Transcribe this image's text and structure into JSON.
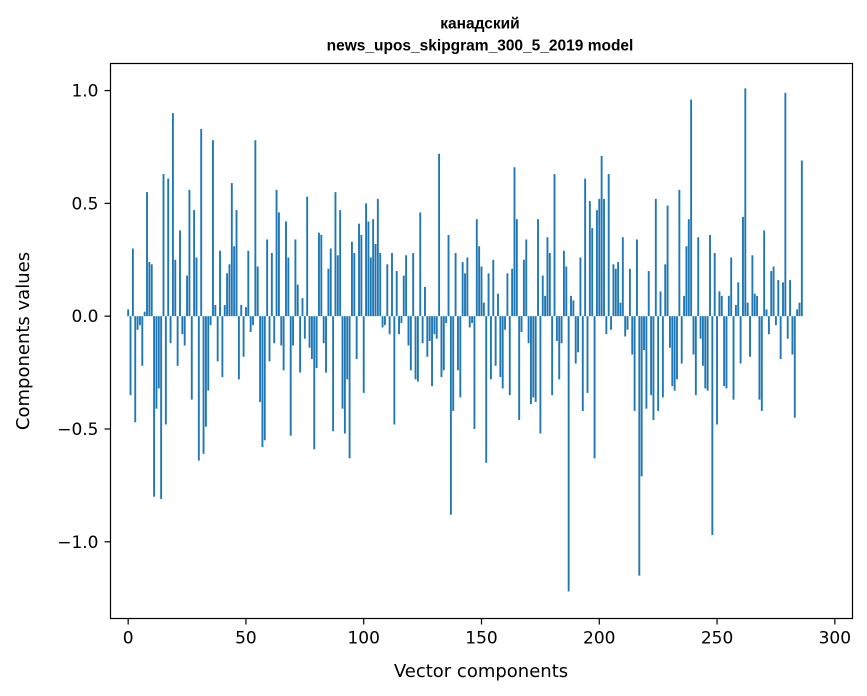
{
  "chart_data": {
    "type": "bar",
    "title_line1": "канадский",
    "title_line2": "news_upos_skipgram_300_5_2019 model",
    "xlabel": "Vector components",
    "ylabel": "Components values",
    "xlim": [
      -7.5,
      307.5
    ],
    "ylim": [
      -1.34,
      1.12
    ],
    "xticks": [
      0,
      50,
      100,
      150,
      200,
      250,
      300
    ],
    "xtick_labels": [
      "0",
      "50",
      "100",
      "150",
      "200",
      "250",
      "300"
    ],
    "yticks": [
      -1.0,
      -0.5,
      0.0,
      0.5,
      1.0
    ],
    "ytick_labels": [
      "−1.0",
      "−0.5",
      "0.0",
      "0.5",
      "1.0"
    ],
    "bar_color": "#1f77b4",
    "values": [
      0.03,
      -0.35,
      0.3,
      -0.47,
      -0.06,
      -0.04,
      -0.22,
      0.02,
      0.55,
      0.24,
      0.23,
      -0.8,
      -0.41,
      -0.32,
      -0.81,
      0.63,
      -0.48,
      0.61,
      -0.12,
      0.9,
      0.25,
      -0.22,
      0.38,
      -0.08,
      -0.13,
      0.18,
      0.56,
      -0.37,
      0.47,
      0.26,
      -0.64,
      0.83,
      -0.61,
      -0.49,
      -0.33,
      -0.04,
      0.78,
      0.05,
      -0.2,
      0.29,
      -0.27,
      0.05,
      0.19,
      0.23,
      0.59,
      0.31,
      0.47,
      -0.28,
      0.05,
      -0.18,
      0.04,
      0.29,
      -0.07,
      -0.04,
      0.78,
      0.22,
      -0.38,
      -0.58,
      -0.55,
      0.34,
      -0.2,
      0.28,
      -0.12,
      0.56,
      0.46,
      -0.13,
      -0.24,
      0.42,
      0.26,
      -0.53,
      -0.13,
      0.34,
      0.14,
      -0.25,
      0.08,
      -0.1,
      0.53,
      -0.14,
      -0.19,
      -0.59,
      -0.23,
      0.37,
      0.36,
      -0.12,
      -0.25,
      0.21,
      0.3,
      -0.51,
      0.55,
      0.27,
      0.47,
      -0.41,
      -0.52,
      -0.28,
      -0.63,
      0.33,
      0.28,
      -0.19,
      0.41,
      0.36,
      -0.34,
      0.5,
      0.42,
      0.26,
      0.43,
      0.32,
      0.52,
      0.28,
      -0.05,
      -0.04,
      0.23,
      -0.08,
      0.28,
      -0.48,
      0.2,
      -0.08,
      -0.03,
      0.18,
      0.27,
      -0.13,
      -0.24,
      0.28,
      -0.28,
      -0.29,
      0.46,
      -0.12,
      0.13,
      -0.18,
      -0.11,
      -0.31,
      -0.08,
      -0.1,
      0.72,
      -0.27,
      -0.24,
      -0.03,
      0.36,
      -0.88,
      -0.42,
      0.28,
      -0.24,
      -0.36,
      0.24,
      0.19,
      0.26,
      -0.05,
      -0.03,
      -0.5,
      0.43,
      0.31,
      0.22,
      0.06,
      -0.65,
      0.19,
      -0.28,
      0.25,
      -0.22,
      0.1,
      -0.27,
      -0.32,
      -0.06,
      0.19,
      -0.35,
      0.21,
      0.66,
      0.43,
      -0.46,
      -0.07,
      0.25,
      0.34,
      -0.12,
      -0.39,
      -0.36,
      -0.38,
      0.43,
      -0.52,
      0.18,
      0.09,
      0.35,
      0.28,
      -0.35,
      0.63,
      -0.11,
      -0.28,
      -0.12,
      0.29,
      0.22,
      -1.22,
      0.09,
      0.07,
      -0.21,
      -0.16,
      0.26,
      -0.42,
      0.61,
      -0.34,
      0.51,
      0.39,
      -0.63,
      0.47,
      0.52,
      0.71,
      0.52,
      -0.08,
      0.63,
      -0.06,
      0.23,
      0.21,
      0.24,
      0.06,
      0.35,
      -0.09,
      -0.06,
      0.21,
      -0.17,
      -0.42,
      0.34,
      -1.15,
      -0.71,
      -0.15,
      -0.41,
      0.2,
      -0.35,
      -0.46,
      0.52,
      -0.42,
      0.11,
      -0.36,
      0.23,
      0.49,
      -0.14,
      -0.31,
      -0.33,
      -0.28,
      0.56,
      -0.21,
      0.09,
      0.31,
      0.43,
      0.96,
      -0.17,
      -0.35,
      0.35,
      -0.1,
      -0.22,
      -0.32,
      -0.33,
      0.36,
      -0.97,
      0.28,
      -0.48,
      0.11,
      0.09,
      -0.31,
      -0.32,
      0.09,
      0.26,
      -0.37,
      0.05,
      0.15,
      -0.21,
      0.44,
      1.01,
      0.06,
      -0.18,
      0.27,
      0.1,
      0.09,
      -0.37,
      -0.42,
      0.38,
      0.03,
      -0.08,
      0.2,
      0.22,
      -0.04,
      0.16,
      -0.19,
      0.15,
      0.99,
      -0.1,
      0.16,
      -0.17,
      -0.45,
      0.03,
      0.06,
      0.69
    ]
  }
}
